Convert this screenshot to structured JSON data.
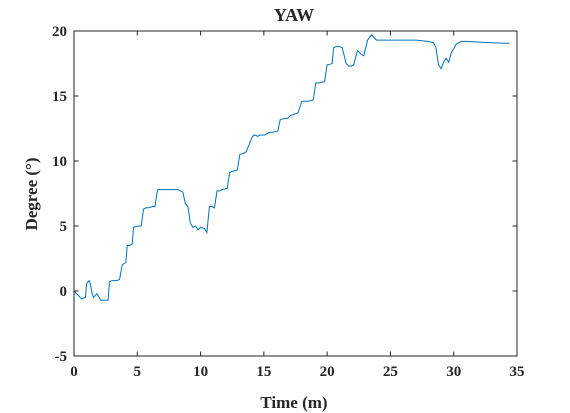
{
  "chart_data": {
    "type": "line",
    "title": "YAW",
    "xlabel": "Time (m)",
    "ylabel": "Degree (°)",
    "xlim": [
      0,
      35
    ],
    "ylim": [
      -5,
      20
    ],
    "xticks": [
      0,
      5,
      10,
      15,
      20,
      25,
      30,
      35
    ],
    "yticks": [
      -5,
      0,
      5,
      10,
      15,
      20
    ],
    "grid": false,
    "box": true,
    "series": [
      {
        "color": "#0072BD",
        "x": [
          0.0,
          0.3,
          0.6,
          0.9,
          1.0,
          1.2,
          1.3,
          1.45,
          1.55,
          1.8,
          2.0,
          2.1,
          2.3,
          2.7,
          2.8,
          3.0,
          3.4,
          3.6,
          3.8,
          4.1,
          4.2,
          4.4,
          4.6,
          4.7,
          5.1,
          5.3,
          5.5,
          5.7,
          5.9,
          6.2,
          6.4,
          6.6,
          6.9,
          7.2,
          7.4,
          7.8,
          8.2,
          8.6,
          8.8,
          9.0,
          9.2,
          9.4,
          9.6,
          9.8,
          10.0,
          10.3,
          10.5,
          10.7,
          10.9,
          11.1,
          11.3,
          11.5,
          11.7,
          12.1,
          12.3,
          12.5,
          12.9,
          13.1,
          13.4,
          13.6,
          14.1,
          14.3,
          14.5,
          14.7,
          15.1,
          15.4,
          15.6,
          16.1,
          16.3,
          16.9,
          17.1,
          17.7,
          18.0,
          18.5,
          18.9,
          19.1,
          19.3,
          19.8,
          20.0,
          20.1,
          20.4,
          20.5,
          20.7,
          21.0,
          21.2,
          21.5,
          21.7,
          21.9,
          22.1,
          22.4,
          22.7,
          22.9,
          23.2,
          23.5,
          23.7,
          23.9,
          24.2,
          25.0,
          26.0,
          27.0,
          28.0,
          28.4,
          28.6,
          28.8,
          29.0,
          29.2,
          29.4,
          29.6,
          29.8,
          30.2,
          30.6,
          31.0,
          32.0,
          33.0,
          34.0,
          34.4
        ],
        "y": [
          0.0,
          -0.3,
          -0.6,
          -0.5,
          0.6,
          0.8,
          0.5,
          -0.3,
          -0.5,
          -0.2,
          -0.5,
          -0.7,
          -0.7,
          -0.7,
          0.7,
          0.8,
          0.8,
          0.9,
          2.0,
          2.2,
          3.5,
          3.5,
          3.6,
          4.9,
          5.0,
          5.0,
          6.3,
          6.4,
          6.4,
          6.5,
          6.5,
          7.8,
          7.8,
          7.8,
          7.8,
          7.8,
          7.8,
          7.6,
          6.7,
          6.5,
          5.2,
          4.9,
          5.0,
          4.7,
          4.9,
          4.8,
          4.5,
          6.5,
          6.5,
          6.4,
          7.7,
          7.7,
          7.8,
          7.9,
          9.1,
          9.2,
          9.3,
          10.5,
          10.6,
          10.7,
          11.9,
          12.0,
          11.9,
          12.0,
          12.0,
          12.2,
          12.2,
          12.3,
          13.2,
          13.3,
          13.5,
          13.7,
          14.6,
          14.6,
          14.7,
          16.0,
          16.0,
          16.1,
          17.4,
          17.4,
          17.5,
          18.7,
          18.8,
          18.8,
          18.7,
          17.5,
          17.3,
          17.3,
          17.4,
          18.5,
          18.2,
          18.1,
          19.3,
          19.7,
          19.5,
          19.3,
          19.3,
          19.3,
          19.3,
          19.3,
          19.2,
          19.1,
          18.7,
          17.4,
          17.1,
          17.6,
          17.9,
          17.6,
          18.3,
          19.0,
          19.2,
          19.2,
          19.15,
          19.1,
          19.05,
          19.05
        ]
      }
    ]
  }
}
